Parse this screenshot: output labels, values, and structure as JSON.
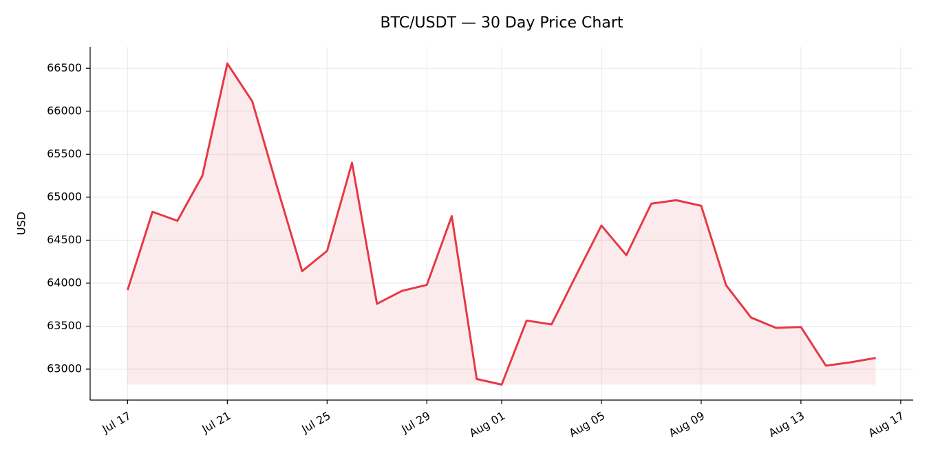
{
  "chart_data": {
    "type": "line",
    "title": "BTC/USDT — 30 Day Price Chart",
    "y_label": "USD",
    "x": [
      "Jul 17",
      "Jul 18",
      "Jul 19",
      "Jul 20",
      "Jul 21",
      "Jul 22",
      "Jul 23",
      "Jul 24",
      "Jul 25",
      "Jul 26",
      "Jul 27",
      "Jul 28",
      "Jul 29",
      "Jul 30",
      "Jul 31",
      "Aug 01",
      "Aug 02",
      "Aug 03",
      "Aug 04",
      "Aug 05",
      "Aug 06",
      "Aug 07",
      "Aug 08",
      "Aug 09",
      "Aug 10",
      "Aug 11",
      "Aug 12",
      "Aug 13",
      "Aug 14",
      "Aug 15",
      "Aug 16"
    ],
    "values": [
      63920,
      64830,
      64725,
      65250,
      66555,
      66115,
      65115,
      64140,
      64375,
      65400,
      63760,
      63910,
      63980,
      64780,
      62885,
      62820,
      63565,
      63520,
      64100,
      64670,
      64325,
      64925,
      64965,
      64900,
      63975,
      63600,
      63480,
      63490,
      63040,
      63080,
      63130
    ],
    "color": "#e63946",
    "ylim": [
      62640,
      66750
    ],
    "yticks": [
      63000,
      63500,
      64000,
      64500,
      65000,
      65500,
      66000,
      66500
    ],
    "xticks": [
      "Jul 17",
      "Jul 21",
      "Jul 25",
      "Jul 29",
      "Aug 01",
      "Aug 05",
      "Aug 09",
      "Aug 13",
      "Aug 17"
    ],
    "grid": true,
    "fill": true
  }
}
